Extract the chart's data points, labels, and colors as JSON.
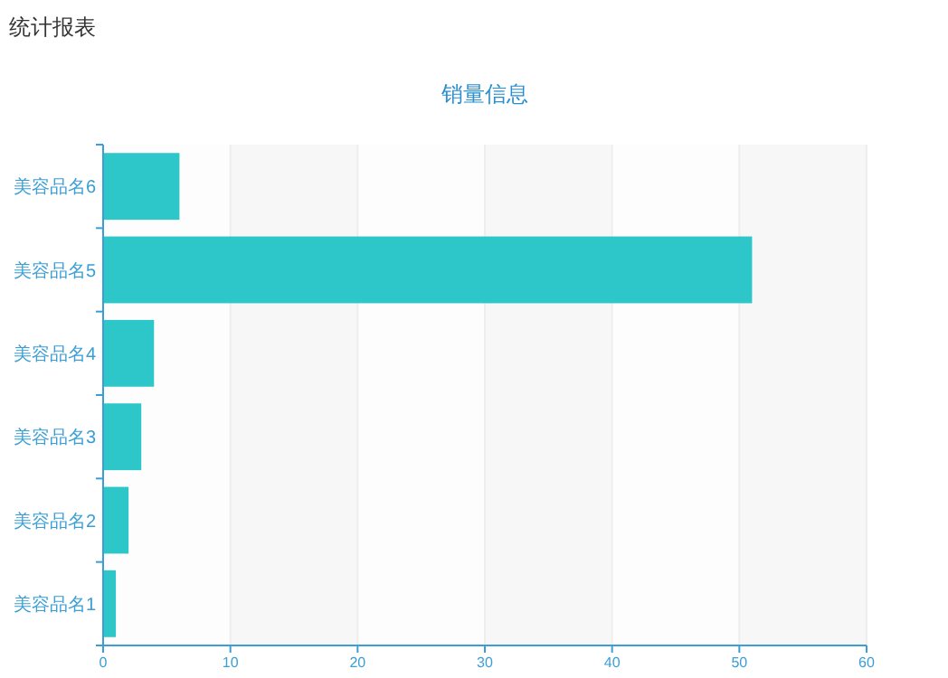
{
  "chart_data": {
    "type": "bar",
    "orientation": "horizontal",
    "title": "销量信息",
    "annotations": [
      "统计报表"
    ],
    "categories": [
      "美容品名6",
      "美容品名5",
      "美容品名4",
      "美容品名3",
      "美容品名2",
      "美容品名1"
    ],
    "values": [
      6,
      51,
      4,
      3,
      2,
      1
    ],
    "color": "#2ec7c9",
    "xlim": [
      0,
      60
    ],
    "xticks": [
      0,
      10,
      20,
      30,
      40,
      50,
      60
    ],
    "grid": "x"
  }
}
